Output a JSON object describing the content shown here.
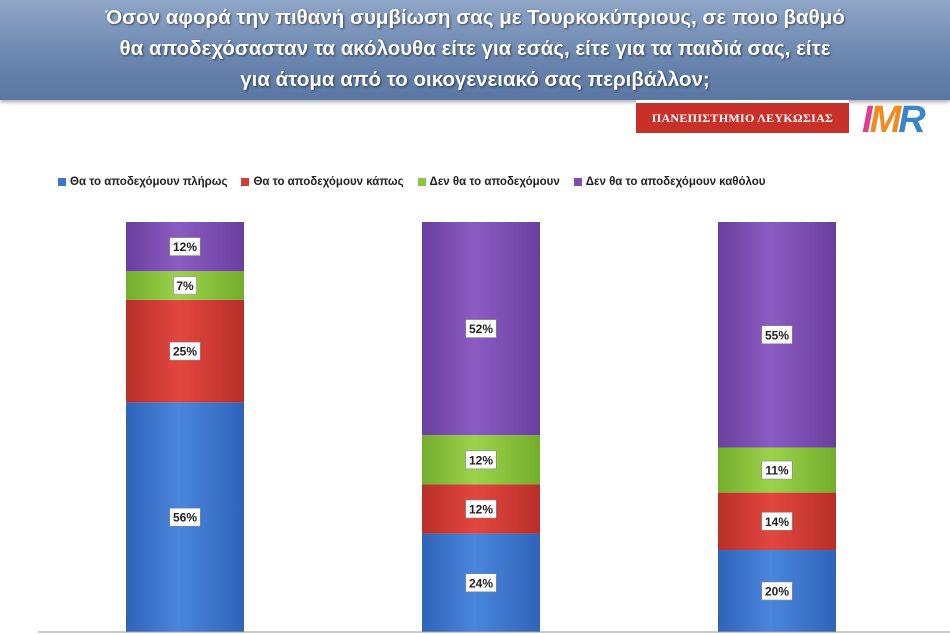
{
  "header": {
    "title_lines": [
      "Όσον αφορά την πιθανή συμβίωση σας με Τουρκοκύπριους, σε ποιο βαθμό",
      "θα αποδεχόσασταν τα ακόλουθα είτε για εσάς, είτε για τα παιδιά σας, είτε",
      "για άτομα από το οικογενειακό σας περιβάλλον;"
    ]
  },
  "logos": {
    "university": "ΠΑΝΕΠΙΣΤΗΜΙΟ ΛΕΥΚΩΣΙΑΣ",
    "imr": [
      "I",
      "M",
      "R"
    ]
  },
  "colors": {
    "blue": "#3c75cf",
    "red": "#d23b35",
    "green": "#8cc63f",
    "purple": "#7d4fb3"
  },
  "chart_data": {
    "type": "bar",
    "stacked": true,
    "categories": [
      "",
      "",
      ""
    ],
    "ylim": [
      0,
      100
    ],
    "grid": false,
    "legend_position": "top",
    "series": [
      {
        "name": "Θα το αποδεχόμουν πλήρως",
        "color": "#3c75cf",
        "values": [
          56,
          24,
          20
        ]
      },
      {
        "name": "Θα το αποδεχόμουν κάπως",
        "color": "#d23b35",
        "values": [
          25,
          12,
          14
        ]
      },
      {
        "name": "Δεν θα το αποδεχόμουν",
        "color": "#8cc63f",
        "values": [
          7,
          12,
          11
        ]
      },
      {
        "name": "Δεν θα το αποδεχόμουν καθόλου",
        "color": "#7d4fb3",
        "values": [
          12,
          52,
          55
        ]
      }
    ],
    "labels": [
      [
        "56%",
        "24%",
        "20%"
      ],
      [
        "25%",
        "12%",
        "14%"
      ],
      [
        "7%",
        "12%",
        "11%"
      ],
      [
        "12%",
        "52%",
        "55%"
      ]
    ]
  }
}
